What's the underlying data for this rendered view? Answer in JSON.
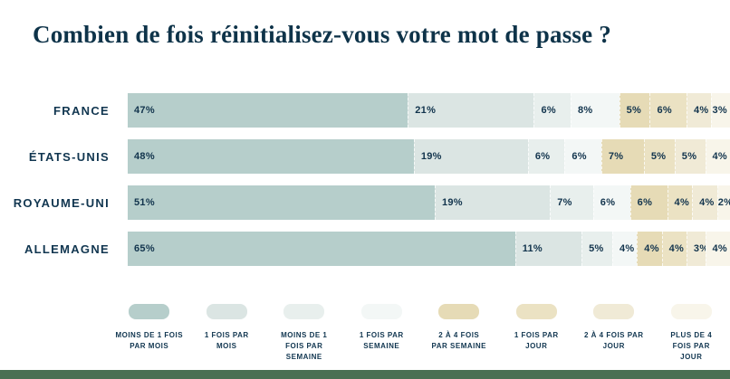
{
  "title": "Combien de fois réinitialisez-vous votre mot de passe ?",
  "colors": {
    "background": "#ffffff",
    "title_text": "#0e3349",
    "label_text": "#113650",
    "value_text": "#12344d",
    "footer_strip": "#4a7053"
  },
  "chart_data": {
    "type": "bar",
    "orientation": "horizontal",
    "stacked": true,
    "unit": "%",
    "title": "Combien de fois réinitialisez-vous votre mot de passe ?",
    "legend_position": "bottom",
    "value_label_format": "{value}%",
    "categories": [
      "FRANCE",
      "ÉTATS-UNIS",
      "ROYAUME-UNI",
      "ALLEMAGNE"
    ],
    "series": [
      {
        "name": "MOINS DE 1 FOIS PAR MOIS",
        "color": "#b6cecb",
        "values": [
          47,
          48,
          51,
          65
        ]
      },
      {
        "name": "1 FOIS PAR MOIS",
        "color": "#dbe5e3",
        "values": [
          21,
          19,
          19,
          11
        ]
      },
      {
        "name": "MOINS DE 1 FOIS PAR SEMAINE",
        "color": "#e8efed",
        "values": [
          6,
          6,
          7,
          5
        ]
      },
      {
        "name": "1 FOIS PAR SEMAINE",
        "color": "#f3f7f6",
        "values": [
          8,
          6,
          6,
          4
        ]
      },
      {
        "name": "2 À 4 FOIS PAR SEMAINE",
        "color": "#e6dbb6",
        "values": [
          5,
          7,
          6,
          4
        ]
      },
      {
        "name": "1 FOIS PAR JOUR",
        "color": "#ebe2c3",
        "values": [
          6,
          5,
          4,
          4
        ]
      },
      {
        "name": "2 À 4 FOIS PAR JOUR",
        "color": "#f0ead6",
        "values": [
          4,
          5,
          4,
          3
        ]
      },
      {
        "name": "PLUS DE 4 FOIS PAR JOUR",
        "color": "#f8f5ea",
        "values": [
          3,
          4,
          2,
          4
        ]
      }
    ]
  }
}
